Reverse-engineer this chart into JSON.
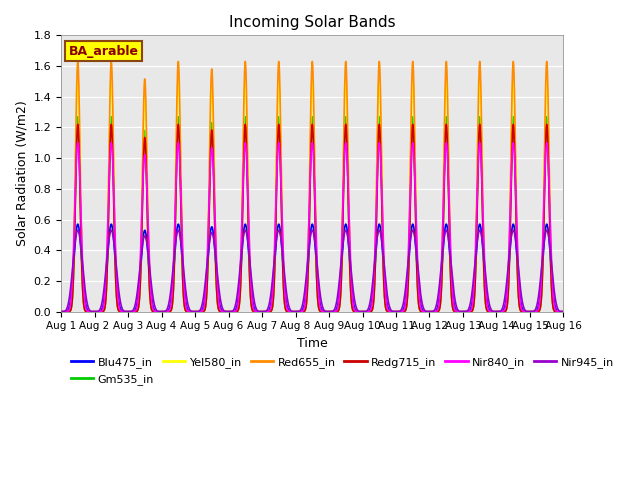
{
  "title": "Incoming Solar Bands",
  "ylabel": "Solar Radiation (W/m2)",
  "xlabel": "Time",
  "ylim": [
    0,
    1.8
  ],
  "background_color": "#e8e8e8",
  "legend_label": "BA_arable",
  "legend_label_color": "#8B0000",
  "legend_box_color": "#FFFF00",
  "series": [
    {
      "name": "Blu475_in",
      "color": "#0000FF",
      "lw": 1.2,
      "peak": 0.57,
      "power": 8
    },
    {
      "name": "Gm535_in",
      "color": "#00CC00",
      "lw": 1.2,
      "peak": 1.27,
      "power": 20
    },
    {
      "name": "Yel580_in",
      "color": "#FFFF00",
      "lw": 1.2,
      "peak": 1.52,
      "power": 20
    },
    {
      "name": "Red655_in",
      "color": "#FF8C00",
      "lw": 1.2,
      "peak": 1.63,
      "power": 20
    },
    {
      "name": "Redg715_in",
      "color": "#CC0000",
      "lw": 1.2,
      "peak": 1.22,
      "power": 20
    },
    {
      "name": "Nir840_in",
      "color": "#FF00FF",
      "lw": 1.2,
      "peak": 1.1,
      "power": 12
    },
    {
      "name": "Nir945_in",
      "color": "#9900CC",
      "lw": 1.2,
      "peak": 0.53,
      "power": 5
    }
  ],
  "num_days": 15,
  "samples_per_day": 500,
  "day_peak_factors": [
    1.0,
    1.0,
    0.93,
    1.0,
    0.97,
    1.0,
    1.0,
    1.0,
    1.0,
    1.0,
    1.0,
    1.0,
    1.0,
    1.0,
    1.0
  ],
  "day2_partial": true,
  "xtick_labels": [
    "Aug 1",
    "Aug 2",
    "Aug 3",
    "Aug 4",
    "Aug 5",
    "Aug 6",
    "Aug 7",
    "Aug 8",
    "Aug 9",
    "Aug 10",
    "Aug 11",
    "Aug 12",
    "Aug 13",
    "Aug 14",
    "Aug 15",
    "Aug 16"
  ]
}
